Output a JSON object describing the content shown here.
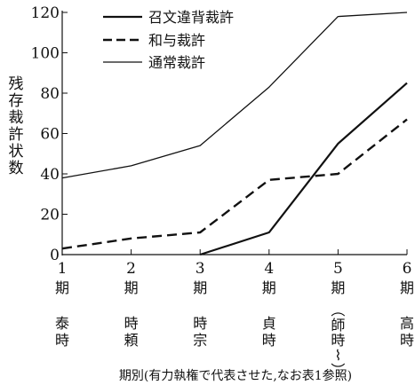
{
  "chart_data": {
    "type": "line",
    "ylabel": "残存裁許状数",
    "xlabel": "期別(有力執権で代表させた,なお表1参照)",
    "ylim": [
      0,
      120
    ],
    "yticks": [
      0,
      20,
      40,
      60,
      80,
      100,
      120
    ],
    "x": [
      1,
      2,
      3,
      4,
      5,
      6
    ],
    "x_tick_numbers": [
      "1",
      "2",
      "3",
      "4",
      "5",
      "6"
    ],
    "x_period_char": "期",
    "x_regents": [
      "泰時",
      "時頼",
      "時宗",
      "貞時",
      "(師時~)",
      "高時"
    ],
    "legend": {
      "position": "top-left"
    },
    "grid": false,
    "series": [
      {
        "name": "召文違背裁許",
        "style": "solid-thick",
        "values": [
          null,
          null,
          0,
          11,
          55,
          85
        ]
      },
      {
        "name": "和与裁許",
        "style": "dashed",
        "values": [
          3,
          8,
          11,
          37,
          40,
          67
        ]
      },
      {
        "name": "通常裁許",
        "style": "solid-thin",
        "values": [
          38,
          44,
          54,
          83,
          118,
          120
        ]
      }
    ]
  }
}
